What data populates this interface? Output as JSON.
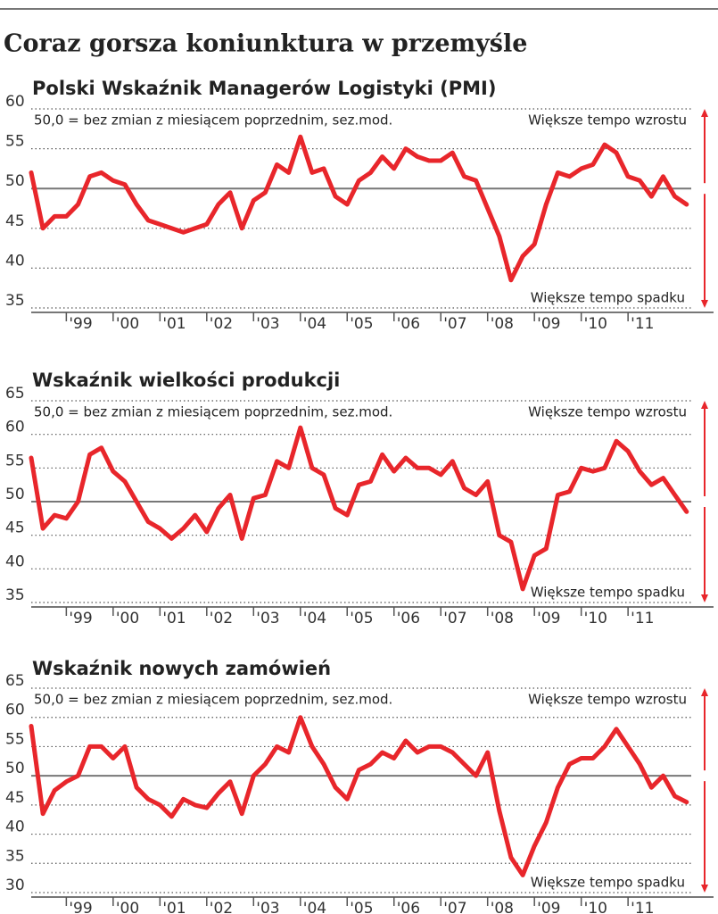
{
  "title": "Coraz gorsza koniunktura w przemyśle",
  "chart_data": [
    {
      "type": "line",
      "title": "Polski Wskaźnik Managerów Logistyki (PMI)",
      "note": "50,0 = bez zmian z miesiącem poprzednim, sez.mod.",
      "annotations": [
        "Większe tempo wzrostu",
        "Większe tempo spadku"
      ],
      "color": "#e8262b",
      "grid": true,
      "baseline": 50,
      "ylim": [
        35,
        60
      ],
      "yticks": [
        35,
        40,
        45,
        50,
        55,
        60
      ],
      "xlim": [
        1998.25,
        2012.35
      ],
      "xticks": [
        {
          "value": 1999,
          "label": "'99"
        },
        {
          "value": 2000,
          "label": "'00"
        },
        {
          "value": 2001,
          "label": "'01"
        },
        {
          "value": 2002,
          "label": "'02"
        },
        {
          "value": 2003,
          "label": "'03"
        },
        {
          "value": 2004,
          "label": "'04"
        },
        {
          "value": 2005,
          "label": "'05"
        },
        {
          "value": 2006,
          "label": "'06"
        },
        {
          "value": 2007,
          "label": "'07"
        },
        {
          "value": 2008,
          "label": "'08"
        },
        {
          "value": 2009,
          "label": "'09"
        },
        {
          "value": 2010,
          "label": "'10"
        },
        {
          "value": 2011,
          "label": "'11"
        }
      ],
      "x": [
        1998.25,
        1998.5,
        1998.75,
        1999,
        1999.25,
        1999.5,
        1999.75,
        2000,
        2000.25,
        2000.5,
        2000.75,
        2001,
        2001.25,
        2001.5,
        2001.75,
        2002,
        2002.25,
        2002.5,
        2002.75,
        2003,
        2003.25,
        2003.5,
        2003.75,
        2004,
        2004.25,
        2004.5,
        2004.75,
        2005,
        2005.25,
        2005.5,
        2005.75,
        2006,
        2006.25,
        2006.5,
        2006.75,
        2007,
        2007.25,
        2007.5,
        2007.75,
        2008,
        2008.25,
        2008.5,
        2008.75,
        2009,
        2009.25,
        2009.5,
        2009.75,
        2010,
        2010.25,
        2010.5,
        2010.75,
        2011,
        2011.25,
        2011.5,
        2011.75,
        2012,
        2012.25
      ],
      "values": [
        52,
        45,
        46.5,
        46.5,
        48,
        51.5,
        52,
        51,
        50.5,
        48,
        46,
        45.5,
        45,
        44.5,
        45,
        45.5,
        48,
        49.5,
        45,
        48.5,
        49.5,
        53,
        52,
        56.5,
        52,
        52.5,
        49,
        48,
        51,
        52,
        54,
        52.5,
        55,
        54,
        53.5,
        53.5,
        54.5,
        51.5,
        51,
        47.5,
        44,
        38.5,
        41.5,
        43,
        48,
        52,
        51.5,
        52.5,
        53,
        55.5,
        54.5,
        51.5,
        51,
        49,
        51.5,
        49,
        48
      ]
    },
    {
      "type": "line",
      "title": "Wskaźnik wielkości produkcji",
      "note": "50,0 = bez zmian z miesiącem poprzednim, sez.mod.",
      "annotations": [
        "Większe tempo wzrostu",
        "Większe tempo spadku"
      ],
      "color": "#e8262b",
      "grid": true,
      "baseline": 50,
      "ylim": [
        35,
        65
      ],
      "yticks": [
        35,
        40,
        45,
        50,
        55,
        60,
        65
      ],
      "xlim": [
        1998.25,
        2012.35
      ],
      "xticks": [
        {
          "value": 1999,
          "label": "'99"
        },
        {
          "value": 2000,
          "label": "'00"
        },
        {
          "value": 2001,
          "label": "'01"
        },
        {
          "value": 2002,
          "label": "'02"
        },
        {
          "value": 2003,
          "label": "'03"
        },
        {
          "value": 2004,
          "label": "'04"
        },
        {
          "value": 2005,
          "label": "'05"
        },
        {
          "value": 2006,
          "label": "'06"
        },
        {
          "value": 2007,
          "label": "'07"
        },
        {
          "value": 2008,
          "label": "'08"
        },
        {
          "value": 2009,
          "label": "'09"
        },
        {
          "value": 2010,
          "label": "'10"
        },
        {
          "value": 2011,
          "label": "'11"
        }
      ],
      "x": [
        1998.25,
        1998.5,
        1998.75,
        1999,
        1999.25,
        1999.5,
        1999.75,
        2000,
        2000.25,
        2000.5,
        2000.75,
        2001,
        2001.25,
        2001.5,
        2001.75,
        2002,
        2002.25,
        2002.5,
        2002.75,
        2003,
        2003.25,
        2003.5,
        2003.75,
        2004,
        2004.25,
        2004.5,
        2004.75,
        2005,
        2005.25,
        2005.5,
        2005.75,
        2006,
        2006.25,
        2006.5,
        2006.75,
        2007,
        2007.25,
        2007.5,
        2007.75,
        2008,
        2008.25,
        2008.5,
        2008.75,
        2009,
        2009.25,
        2009.5,
        2009.75,
        2010,
        2010.25,
        2010.5,
        2010.75,
        2011,
        2011.25,
        2011.5,
        2011.75,
        2012,
        2012.25
      ],
      "values": [
        56.5,
        46,
        48,
        47.5,
        50,
        57,
        58,
        54.5,
        53,
        50,
        47,
        46,
        44.5,
        46,
        48,
        45.5,
        49,
        51,
        44.5,
        50.5,
        51,
        56,
        55,
        61,
        55,
        54,
        49,
        48,
        52.5,
        53,
        57,
        54.5,
        56.5,
        55,
        55,
        54,
        56,
        52,
        51,
        53,
        45,
        44,
        37,
        42,
        43,
        51,
        51.5,
        55,
        54.5,
        55,
        59,
        57.5,
        54.5,
        52.5,
        53.5,
        51,
        48.5
      ]
    },
    {
      "type": "line",
      "title": "Wskaźnik nowych zamówień",
      "note": "50,0 = bez zmian z miesiącem poprzednim, sez.mod.",
      "annotations": [
        "Większe tempo wzrostu",
        "Większe tempo spadku"
      ],
      "color": "#e8262b",
      "grid": true,
      "baseline": 50,
      "ylim": [
        30,
        65
      ],
      "yticks": [
        30,
        35,
        40,
        45,
        50,
        55,
        60,
        65
      ],
      "xlim": [
        1998.25,
        2012.35
      ],
      "xticks": [
        {
          "value": 1999,
          "label": "'99"
        },
        {
          "value": 2000,
          "label": "'00"
        },
        {
          "value": 2001,
          "label": "'01"
        },
        {
          "value": 2002,
          "label": "'02"
        },
        {
          "value": 2003,
          "label": "'03"
        },
        {
          "value": 2004,
          "label": "'04"
        },
        {
          "value": 2005,
          "label": "'05"
        },
        {
          "value": 2006,
          "label": "'06"
        },
        {
          "value": 2007,
          "label": "'07"
        },
        {
          "value": 2008,
          "label": "'08"
        },
        {
          "value": 2009,
          "label": "'09"
        },
        {
          "value": 2010,
          "label": "'10"
        },
        {
          "value": 2011,
          "label": "'11"
        }
      ],
      "x": [
        1998.25,
        1998.5,
        1998.75,
        1999,
        1999.25,
        1999.5,
        1999.75,
        2000,
        2000.25,
        2000.5,
        2000.75,
        2001,
        2001.25,
        2001.5,
        2001.75,
        2002,
        2002.25,
        2002.5,
        2002.75,
        2003,
        2003.25,
        2003.5,
        2003.75,
        2004,
        2004.25,
        2004.5,
        2004.75,
        2005,
        2005.25,
        2005.5,
        2005.75,
        2006,
        2006.25,
        2006.5,
        2006.75,
        2007,
        2007.25,
        2007.5,
        2007.75,
        2008,
        2008.25,
        2008.5,
        2008.75,
        2009,
        2009.25,
        2009.5,
        2009.75,
        2010,
        2010.25,
        2010.5,
        2010.75,
        2011,
        2011.25,
        2011.5,
        2011.75,
        2012,
        2012.25
      ],
      "values": [
        58.5,
        43.5,
        47.5,
        49,
        50,
        55,
        55,
        53,
        55,
        48,
        46,
        45,
        43,
        46,
        45,
        44.5,
        47,
        49,
        43.5,
        50,
        52,
        55,
        54,
        60,
        55,
        52,
        48,
        46,
        51,
        52,
        54,
        53,
        56,
        54,
        55,
        55,
        54,
        52,
        50,
        54,
        44,
        36,
        33,
        38,
        42,
        48,
        52,
        53,
        53,
        55,
        58,
        55,
        52,
        48,
        50,
        46.5,
        45.5
      ]
    }
  ]
}
